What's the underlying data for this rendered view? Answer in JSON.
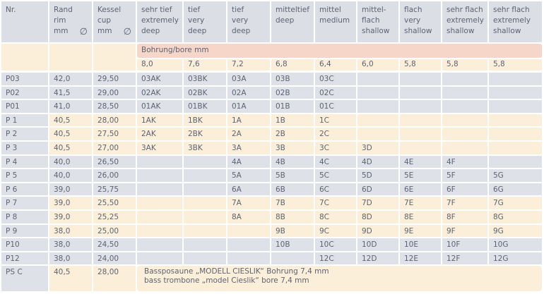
{
  "header": {
    "columns": [
      {
        "lines": [
          "Nr."
        ]
      },
      {
        "lines": [
          "Rand",
          "rim",
          "mm"
        ],
        "symbol": "∅"
      },
      {
        "lines": [
          "Kessel",
          "cup",
          "mm"
        ],
        "symbol": "∅"
      },
      {
        "lines": [
          "sehr tief",
          "extremely",
          "deep"
        ]
      },
      {
        "lines": [
          "tief",
          "very",
          "deep"
        ]
      },
      {
        "lines": [
          "tief",
          "very",
          "deep"
        ]
      },
      {
        "lines": [
          "mitteltief",
          "deep"
        ]
      },
      {
        "lines": [
          "mittel",
          "medium"
        ]
      },
      {
        "lines": [
          "mittel-",
          "flach",
          "shallow"
        ]
      },
      {
        "lines": [
          "flach",
          "very",
          "shallow"
        ]
      },
      {
        "lines": [
          "sehr flach",
          "extremely",
          "shallow"
        ]
      },
      {
        "lines": [
          "sehr flach",
          "extremely",
          "shallow"
        ]
      }
    ]
  },
  "bore": {
    "label": "Bohrung/bore mm",
    "values": [
      "8,0",
      "7,6",
      "7,2",
      "6,8",
      "6,4",
      "6,0",
      "5,8",
      "5,8",
      "5,8"
    ]
  },
  "rows": [
    {
      "nr": "P03",
      "rim": "42,0",
      "cup": "29,50",
      "cells": [
        "03AK",
        "03BK",
        "03A",
        "03B",
        "03C",
        null,
        null,
        null,
        null
      ]
    },
    {
      "nr": "P02",
      "rim": "41,5",
      "cup": "29,00",
      "cells": [
        "02AK",
        "02BK",
        "02A",
        "02B",
        "02C",
        null,
        null,
        null,
        null
      ]
    },
    {
      "nr": "P01",
      "rim": "41,0",
      "cup": "28,50",
      "cells": [
        "01AK",
        "01BK",
        "01A",
        "01B",
        "01C",
        null,
        null,
        null,
        null
      ]
    },
    {
      "nr": "P 1",
      "rim": "40,5",
      "cup": "28,00",
      "cells": [
        "1AK",
        "1BK",
        "1A",
        "1B",
        "1C",
        null,
        null,
        null,
        null
      ]
    },
    {
      "nr": "P 2",
      "rim": "40,5",
      "cup": "27,50",
      "cells": [
        "2AK",
        "2BK",
        "2A",
        "2B",
        "2C",
        null,
        null,
        null,
        null
      ]
    },
    {
      "nr": "P 3",
      "rim": "40,5",
      "cup": "27,00",
      "cells": [
        "3AK",
        "3BK",
        "3A",
        "3B",
        "3C",
        "3D",
        null,
        null,
        null
      ]
    },
    {
      "nr": "P 4",
      "rim": "40,0",
      "cup": "26,50",
      "cells": [
        null,
        null,
        "4A",
        "4B",
        "4C",
        "4D",
        "4E",
        "4F",
        null
      ]
    },
    {
      "nr": "P 5",
      "rim": "40,0",
      "cup": "26,00",
      "cells": [
        null,
        null,
        "5A",
        "5B",
        "5C",
        "5D",
        "5E",
        "5F",
        "5G"
      ]
    },
    {
      "nr": "P 6",
      "rim": "39,0",
      "cup": "25,75",
      "cells": [
        null,
        null,
        "6A",
        "6B",
        "6C",
        "6D",
        "6E",
        "6F",
        "6G"
      ]
    },
    {
      "nr": "P 7",
      "rim": "39,0",
      "cup": "25,50",
      "cells": [
        null,
        null,
        "7A",
        "7B",
        "7C",
        "7D",
        "7E",
        "7F",
        "7G"
      ]
    },
    {
      "nr": "P 8",
      "rim": "39,0",
      "cup": "25,25",
      "cells": [
        null,
        null,
        "8A",
        "8B",
        "8C",
        "8D",
        "8E",
        "8F",
        "8G"
      ]
    },
    {
      "nr": "P 9",
      "rim": "38,0",
      "cup": "25,00",
      "cells": [
        null,
        null,
        null,
        "9B",
        "9C",
        "9D",
        "9E",
        "9F",
        "9G"
      ]
    },
    {
      "nr": "P10",
      "rim": "38,0",
      "cup": "24,50",
      "cells": [
        null,
        null,
        null,
        "10B",
        "10C",
        "10D",
        "10E",
        "10F",
        "10G"
      ]
    },
    {
      "nr": "P12",
      "rim": "38,0",
      "cup": "24,00",
      "cells": [
        null,
        null,
        null,
        null,
        "12C",
        "12D",
        "12E",
        "12F",
        "12G"
      ]
    }
  ],
  "last_row": {
    "nr": "PS C",
    "rim": "40,5",
    "cup": "28,00",
    "note": [
      "Bassposaune „MODELL CIESLIK“ Bohrung 7,4 mm",
      "bass trombone „model Cieslik“ bore 7,4 mm"
    ]
  }
}
